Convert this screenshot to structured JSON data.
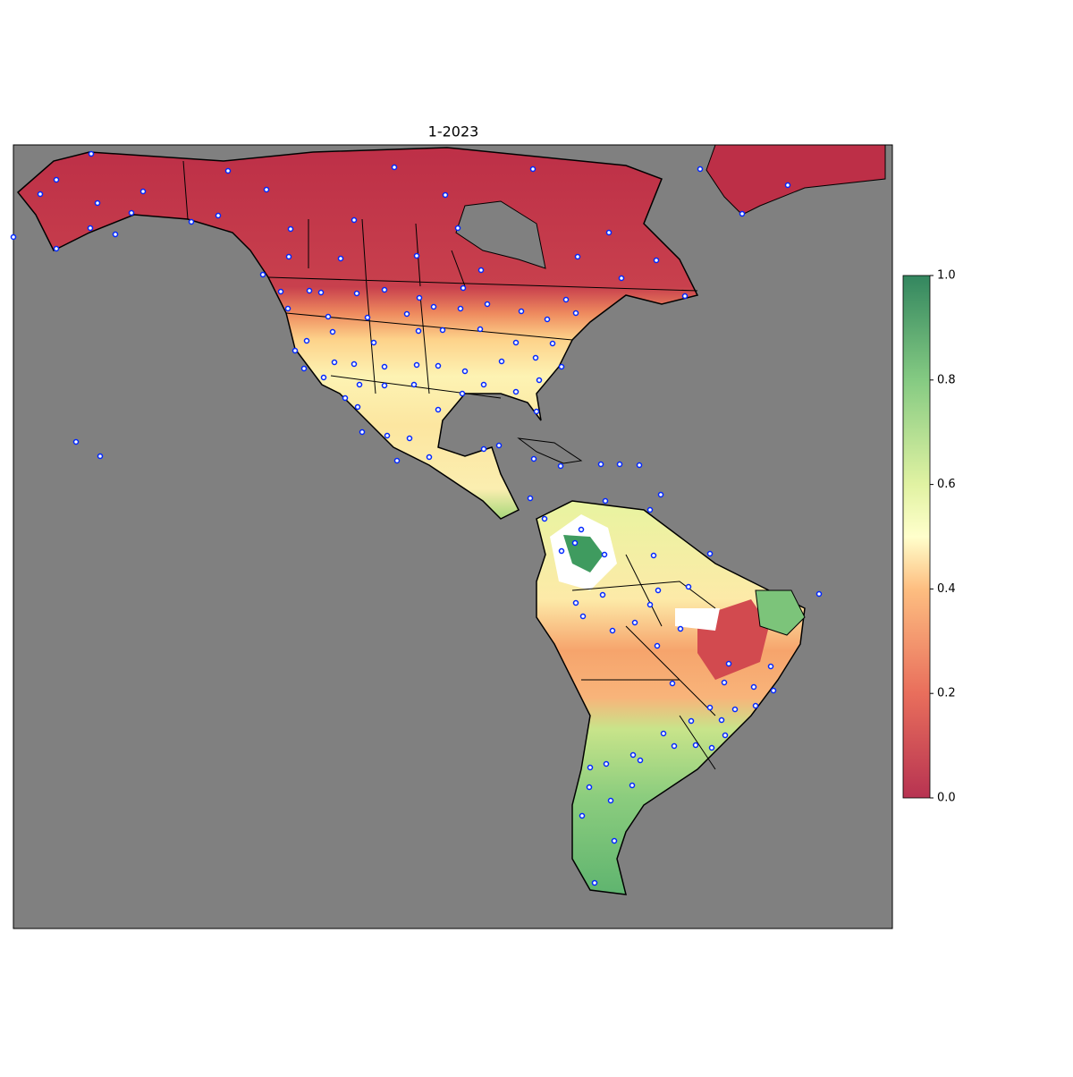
{
  "title": "1-2023",
  "colorbar": {
    "lim": [
      0,
      1
    ],
    "ticks": [
      {
        "value": 0,
        "label": "0.0"
      },
      0.2,
      0.4,
      0.6,
      0.8,
      {
        "value": 1,
        "label": "1.0"
      }
    ]
  }
}
